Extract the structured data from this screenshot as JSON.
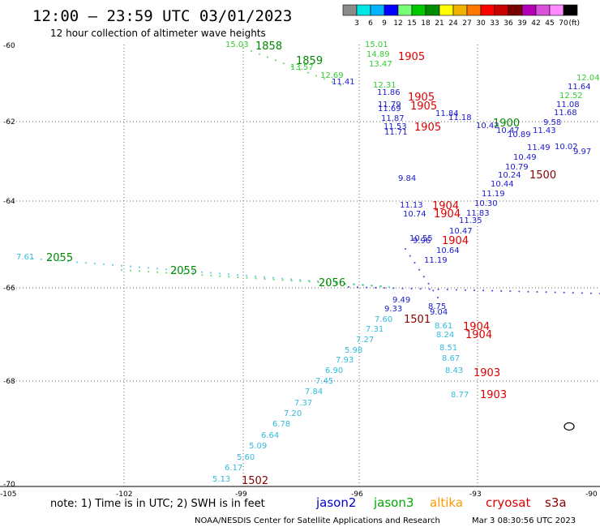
{
  "header": {
    "title": "12:00 – 23:59 UTC 03/01/2023",
    "subtitle": "12 hour collection of altimeter wave heights"
  },
  "colorbar": {
    "labels": [
      "3",
      "6",
      "9",
      "12",
      "15",
      "18",
      "21",
      "24",
      "27",
      "30",
      "33",
      "36",
      "39",
      "42",
      "45",
      "70"
    ],
    "unit": "(ft)",
    "colors": [
      "#8c8c8c",
      "#00e6e6",
      "#00b4ff",
      "#0000ff",
      "#78ff78",
      "#00c800",
      "#008c00",
      "#ffff00",
      "#f0b400",
      "#ff7800",
      "#ff0000",
      "#c80000",
      "#780000",
      "#b400b4",
      "#dc50dc",
      "#ff8cff",
      "#000000"
    ]
  },
  "axes": {
    "lat_labels": [
      "-60",
      "-62",
      "-64",
      "-66",
      "-68",
      "-70"
    ],
    "lon_labels": [
      "-105",
      "-102",
      "-99",
      "-96",
      "-93",
      "-90"
    ]
  },
  "footer": {
    "note": "note:  1) Time is in UTC;  2) SWH is in feet",
    "credit": "NOAA/NESDIS Center for Satellite Applications and Research",
    "timestamp": "Mar  3 08:30:56 UTC 2023",
    "satellites": [
      {
        "name": "jason2",
        "color": "#0000d0"
      },
      {
        "name": "jason3",
        "color": "#00aa00"
      },
      {
        "name": "altika",
        "color": "#ff9900"
      },
      {
        "name": "cryosat",
        "color": "#dd0000"
      },
      {
        "name": "s3a",
        "color": "#880000"
      }
    ]
  },
  "observations": [
    {
      "text": "15.03",
      "color": "#33cc33"
    },
    {
      "text": "13.57",
      "color": "#33cc33"
    },
    {
      "text": "12.69",
      "color": "#33cc33"
    },
    {
      "text": "11.41",
      "color": "#1a1acc"
    },
    {
      "text": "15.01",
      "color": "#33cc33"
    },
    {
      "text": "14.89",
      "color": "#33cc33"
    },
    {
      "text": "13.47",
      "color": "#33cc33"
    },
    {
      "text": "12.31",
      "color": "#33cc33"
    },
    {
      "text": "11.86",
      "color": "#1a1acc"
    },
    {
      "text": "11.79",
      "color": "#1a1acc"
    },
    {
      "text": "11.69",
      "color": "#1a1acc"
    },
    {
      "text": "11.87",
      "color": "#1a1acc"
    },
    {
      "text": "11.53",
      "color": "#1a1acc"
    },
    {
      "text": "11.71",
      "color": "#1a1acc"
    },
    {
      "text": "11.84",
      "color": "#1a1acc"
    },
    {
      "text": "11.18",
      "color": "#1a1acc"
    },
    {
      "text": "10.42",
      "color": "#1a1acc"
    },
    {
      "text": "10.47",
      "color": "#1a1acc"
    },
    {
      "text": "10.89",
      "color": "#1a1acc"
    },
    {
      "text": "11.43",
      "color": "#1a1acc"
    },
    {
      "text": "9.58",
      "color": "#1a1acc"
    },
    {
      "text": "11.68",
      "color": "#1a1acc"
    },
    {
      "text": "11.08",
      "color": "#1a1acc"
    },
    {
      "text": "11.64",
      "color": "#1a1acc"
    },
    {
      "text": "12.52",
      "color": "#33cc33"
    },
    {
      "text": "12.04",
      "color": "#33cc33"
    },
    {
      "text": "10.02",
      "color": "#1a1acc"
    },
    {
      "text": "9.97",
      "color": "#1a1acc"
    },
    {
      "text": "11.49",
      "color": "#1a1acc"
    },
    {
      "text": "10.49",
      "color": "#1a1acc"
    },
    {
      "text": "10.79",
      "color": "#1a1acc"
    },
    {
      "text": "10.24",
      "color": "#1a1acc"
    },
    {
      "text": "10.44",
      "color": "#1a1acc"
    },
    {
      "text": "11.19",
      "color": "#1a1acc"
    },
    {
      "text": "10.30",
      "color": "#1a1acc"
    },
    {
      "text": "9.84",
      "color": "#1a1acc"
    },
    {
      "text": "11.13",
      "color": "#1a1acc"
    },
    {
      "text": "10.74",
      "color": "#1a1acc"
    },
    {
      "text": "11.83",
      "color": "#1a1acc"
    },
    {
      "text": "11.35",
      "color": "#1a1acc"
    },
    {
      "text": "10.47",
      "color": "#1a1acc"
    },
    {
      "text": "10.55",
      "color": "#1a1acc"
    },
    {
      "text": "9.96",
      "color": "#1a1acc"
    },
    {
      "text": "10.64",
      "color": "#1a1acc"
    },
    {
      "text": "11.19",
      "color": "#1a1acc"
    },
    {
      "text": "9.49",
      "color": "#1a1acc"
    },
    {
      "text": "9.33",
      "color": "#1a1acc"
    },
    {
      "text": "9.04",
      "color": "#1a1acc"
    },
    {
      "text": "8.75",
      "color": "#1a1acc"
    },
    {
      "text": "7.61",
      "color": "#33bbdd"
    },
    {
      "text": "7.60",
      "color": "#33bbdd"
    },
    {
      "text": "7.31",
      "color": "#33bbdd"
    },
    {
      "text": "7.27",
      "color": "#33bbdd"
    },
    {
      "text": "5.98",
      "color": "#33bbdd"
    },
    {
      "text": "7.93",
      "color": "#33bbdd"
    },
    {
      "text": "6.90",
      "color": "#33bbdd"
    },
    {
      "text": "7.45",
      "color": "#33bbdd"
    },
    {
      "text": "7.84",
      "color": "#33bbdd"
    },
    {
      "text": "7.37",
      "color": "#33bbdd"
    },
    {
      "text": "7.20",
      "color": "#33bbdd"
    },
    {
      "text": "6.78",
      "color": "#33bbdd"
    },
    {
      "text": "6.64",
      "color": "#33bbdd"
    },
    {
      "text": "5.09",
      "color": "#33bbdd"
    },
    {
      "text": "5.60",
      "color": "#33bbdd"
    },
    {
      "text": "6.17",
      "color": "#33bbdd"
    },
    {
      "text": "5.13",
      "color": "#33bbdd"
    },
    {
      "text": "8.61",
      "color": "#33bbdd"
    },
    {
      "text": "8.24",
      "color": "#33bbdd"
    },
    {
      "text": "8.51",
      "color": "#33bbdd"
    },
    {
      "text": "8.67",
      "color": "#33bbdd"
    },
    {
      "text": "8.43",
      "color": "#33bbdd"
    },
    {
      "text": "8.77",
      "color": "#33bbdd"
    }
  ],
  "hour_marks": [
    {
      "text": "1858",
      "color": "#008800"
    },
    {
      "text": "1859",
      "color": "#008800"
    },
    {
      "text": "1905",
      "color": "#dd0000"
    },
    {
      "text": "1905",
      "color": "#dd0000"
    },
    {
      "text": "1905",
      "color": "#dd0000"
    },
    {
      "text": "1905",
      "color": "#dd0000"
    },
    {
      "text": "1900",
      "color": "#008800"
    },
    {
      "text": "1500",
      "color": "#880000"
    },
    {
      "text": "1904",
      "color": "#dd0000"
    },
    {
      "text": "1904",
      "color": "#dd0000"
    },
    {
      "text": "1904",
      "color": "#dd0000"
    },
    {
      "text": "2055",
      "color": "#008800"
    },
    {
      "text": "2055",
      "color": "#008800"
    },
    {
      "text": "2056",
      "color": "#008800"
    },
    {
      "text": "1501",
      "color": "#880000"
    },
    {
      "text": "1904",
      "color": "#dd0000"
    },
    {
      "text": "1904",
      "color": "#dd0000"
    },
    {
      "text": "1903",
      "color": "#dd0000"
    },
    {
      "text": "1903",
      "color": "#dd0000"
    },
    {
      "text": "1502",
      "color": "#880000"
    }
  ]
}
